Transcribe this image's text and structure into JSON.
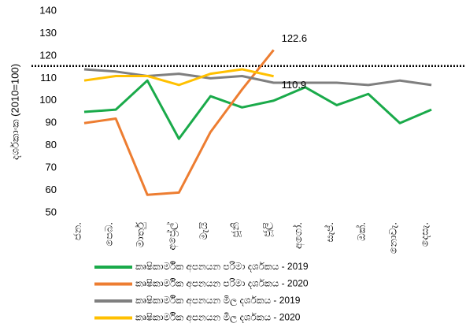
{
  "chart_data": {
    "type": "line",
    "y_label": "දර්ශකාංක (2010=100)",
    "categories": [
      "ජන.",
      "පෙබ.",
      "මාර්තු",
      "අප්‍රේල්",
      "මැයි",
      "ජූනි",
      "ජූලි",
      "අගෝ.",
      "සැප්.",
      "ඔක්.",
      "නොවැ.",
      "දෙසැ."
    ],
    "series": [
      {
        "name": "කෘෂිකාර්මික අපනයන පරිමා දර්ශකය - 2019",
        "color": "#1aaa4a",
        "values": [
          95,
          96,
          109,
          83,
          102,
          97,
          100,
          106,
          98,
          103,
          90,
          96
        ]
      },
      {
        "name": "කෘෂිකාර්මික අපනයන පරිමා දර්ශකය - 2020",
        "color": "#ed7d31",
        "values": [
          90,
          92,
          58,
          59,
          86,
          105,
          122.6,
          null,
          null,
          null,
          null,
          null
        ]
      },
      {
        "name": "කෘෂිකාර්මික අපනයන මිල දර්ශකය - 2019",
        "color": "#7f7f7f",
        "values": [
          114,
          113,
          111,
          112,
          110,
          111,
          108,
          108,
          108,
          107,
          109,
          107
        ]
      },
      {
        "name": "කෘෂිකාර්මික අපනයන මිල දර්ශකය - 2020",
        "color": "#ffc000",
        "values": [
          109,
          111,
          111,
          107,
          112,
          114,
          110.9,
          null,
          null,
          null,
          null,
          null
        ]
      }
    ],
    "point_labels": [
      {
        "series": 1,
        "index": 6
      },
      {
        "series": 3,
        "index": 6
      }
    ],
    "reference_line": 115.5,
    "ylim": [
      50,
      140
    ],
    "yticks": [
      50,
      60,
      70,
      80,
      90,
      100,
      110,
      120,
      130,
      140
    ],
    "grid": false,
    "legend": "bottom"
  }
}
